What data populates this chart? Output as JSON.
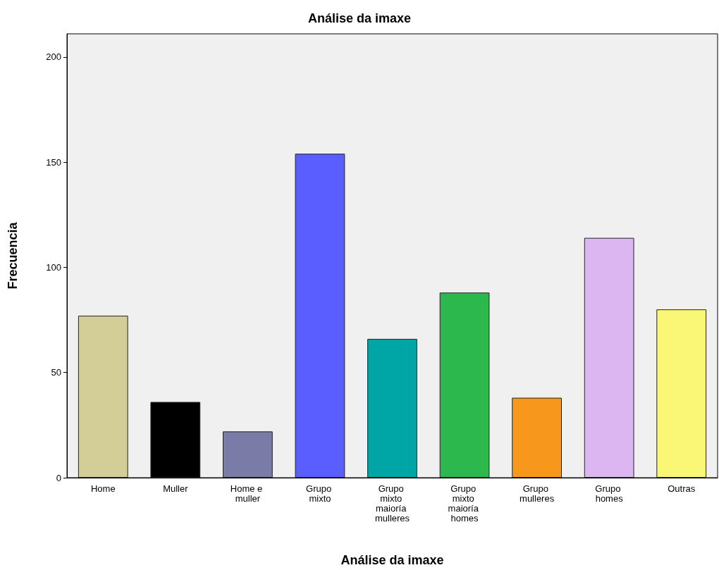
{
  "chart_data": {
    "type": "bar",
    "title": "Análise da imaxe",
    "xlabel": "Análise da imaxe",
    "ylabel": "Frecuencia",
    "categories": [
      "Home",
      "Muller",
      "Home e muller",
      "Grupo mixto",
      "Grupo mixto maioría mulleres",
      "Grupo mixto maioría homes",
      "Grupo mulleres",
      "Grupo homes",
      "Outras"
    ],
    "values": [
      77,
      36,
      22,
      154,
      66,
      88,
      38,
      114,
      80
    ],
    "colors": [
      "#d3ce97",
      "#000000",
      "#7b7ba8",
      "#5a5eff",
      "#00a6a6",
      "#2db84d",
      "#f7981d",
      "#dcb6f0",
      "#fbf776"
    ],
    "ylim": [
      0,
      211
    ],
    "yticks": [
      0,
      50,
      100,
      150,
      200
    ]
  }
}
